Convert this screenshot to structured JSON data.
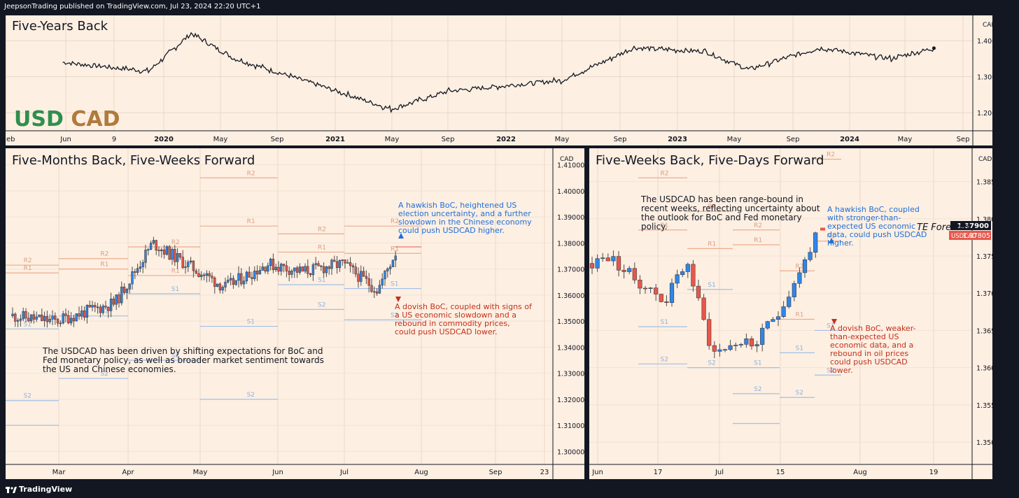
{
  "header": {
    "published": "JeepsonTrading published on TradingView.com, Jul 23, 2024 22:20 UTC+1"
  },
  "footer": {
    "brand": "TradingView"
  },
  "panels": {
    "top": {
      "title": "Five-Years Back",
      "logo_usd": "USD",
      "logo_cad": "CAD",
      "currency": "CAD",
      "xlabels": [
        "eb",
        "Jun",
        "9",
        "2020",
        "May",
        "Sep",
        "2021",
        "May",
        "Sep",
        "2022",
        "May",
        "Sep",
        "2023",
        "May",
        "Sep",
        "2024",
        "May",
        "Sep"
      ],
      "ylabels": [
        "1.40000",
        "1.30000",
        "1.20000"
      ]
    },
    "left": {
      "title": "Five-Months Back, Five-Weeks Forward",
      "currency": "CAD",
      "note": "The USDCAD has been driven by shifting expectations for BoC and Fed monetary policy, as well as broader market sentiment towards the US and Chinese economies.",
      "bull": "A hawkish BoC, heightened US election uncertainty, and a further slowdown in the Chinese economy could push USDCAD higher.",
      "bear": "A dovish BoC, coupled with signs of a US economic slowdown and a rebound in commodity prices, could push USDCAD lower.",
      "xlabels": [
        "Mar",
        "Apr",
        "May",
        "Jun",
        "Jul",
        "Aug",
        "Sep",
        "23"
      ],
      "ylabels": [
        "1.41000",
        "1.40000",
        "1.39000",
        "1.38000",
        "1.37000",
        "1.36000",
        "1.35000",
        "1.34000",
        "1.33000",
        "1.32000",
        "1.31000",
        "1.30000"
      ],
      "levels": [
        "R2",
        "R1",
        "S1",
        "S2"
      ]
    },
    "right": {
      "title": "Five-Weeks Back, Five-Days Forward",
      "currency": "CAD",
      "note": "The USDCAD has been range-bound in recent weeks, reflecting uncertainty about the outlook for BoC and Fed monetary policy.",
      "bull": "A hawkish BoC, coupled with stronger-than-expected US economic data, could push USDCAD higher.",
      "bear": "A dovish BoC, weaker-than-expected US economic data, and a rebound in oil prices could push USDCAD lower.",
      "forecast_label": "TE Forecast",
      "forecast_value": "1.37900",
      "symbol": "USDCAD",
      "last_value": "1.37805",
      "xlabels": [
        "Jun",
        "17",
        "Jul",
        "15",
        "Aug",
        "19"
      ],
      "ylabels": [
        "1.38500",
        "1.38000",
        "1.37500",
        "1.37000",
        "1.36500",
        "1.36000",
        "1.35500",
        "1.35000"
      ],
      "levels": [
        "R2",
        "R1",
        "S1",
        "S2"
      ]
    }
  },
  "colors": {
    "up": "#2f86e8",
    "down": "#e8574c",
    "resistance": "#eeab8c",
    "support": "#9fc0e6",
    "bg": "#fdefe2",
    "frame": "#131722"
  },
  "chart_data": [
    {
      "type": "line",
      "title": "Five-Years Back",
      "series": [
        {
          "name": "",
          "x": [
            "2019-06",
            "2019-12",
            "2020-03",
            "2020-06",
            "2020-12",
            "2021-05",
            "2021-09",
            "2022-05",
            "2022-10",
            "2023-03",
            "2023-06",
            "2023-11",
            "2024-04",
            "2024-07"
          ],
          "values": [
            1.34,
            1.315,
            1.42,
            1.35,
            1.275,
            1.21,
            1.26,
            1.29,
            1.38,
            1.37,
            1.32,
            1.38,
            1.35,
            1.379
          ]
        }
      ],
      "ylim": [
        1.15,
        1.47
      ]
    },
    {
      "type": "line",
      "title": "Five-Months Back, Five-Weeks Forward",
      "series": [
        {
          "name": "",
          "x": [
            "2024-02-20",
            "2024-03-08",
            "2024-04-01",
            "2024-04-16",
            "2024-05-01",
            "2024-05-15",
            "2024-06-01",
            "2024-06-15",
            "2024-07-01",
            "2024-07-15",
            "2024-07-23"
          ],
          "values": [
            1.352,
            1.35,
            1.357,
            1.38,
            1.371,
            1.363,
            1.372,
            1.369,
            1.372,
            1.362,
            1.378
          ]
        }
      ],
      "ylim": [
        1.295,
        1.415
      ]
    },
    {
      "type": "line",
      "title": "Five-Weeks Back, Five-Days Forward",
      "series": [
        {
          "name": "",
          "x": [
            "2024-06-10",
            "2024-06-13",
            "2024-06-18",
            "2024-06-24",
            "2024-06-28",
            "2024-07-03",
            "2024-07-08",
            "2024-07-11",
            "2024-07-16",
            "2024-07-19",
            "2024-07-23"
          ],
          "values": [
            1.374,
            1.375,
            1.372,
            1.369,
            1.3745,
            1.362,
            1.3635,
            1.363,
            1.368,
            1.372,
            1.378
          ]
        }
      ],
      "ylim": [
        1.347,
        1.389
      ]
    }
  ]
}
